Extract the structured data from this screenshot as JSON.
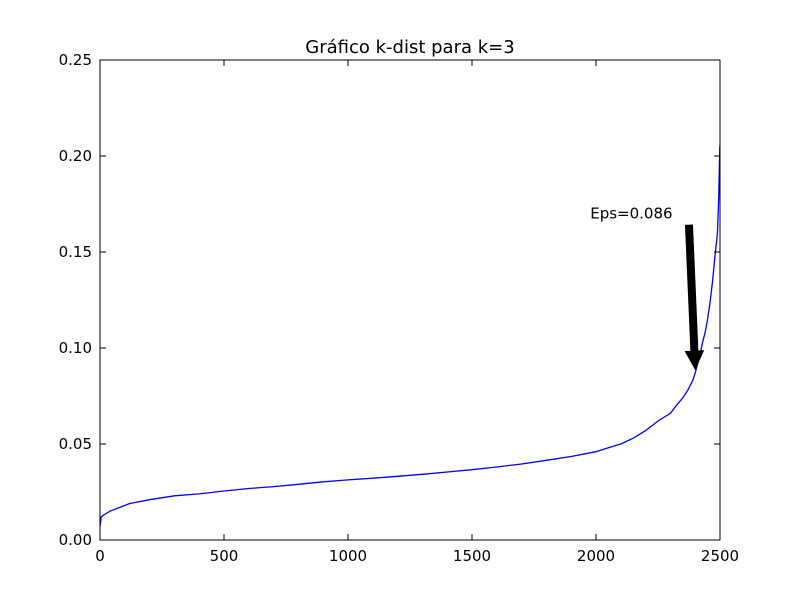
{
  "chart_data": {
    "type": "line",
    "title": "Gráfico k-dist para k=3",
    "xlabel": "",
    "ylabel": "",
    "xlim": [
      0,
      2500
    ],
    "ylim": [
      0,
      0.25
    ],
    "x_ticks": [
      0,
      500,
      1000,
      1500,
      2000,
      2500
    ],
    "x_tick_labels": [
      "0",
      "500",
      "1000",
      "1500",
      "2000",
      "2500"
    ],
    "y_ticks": [
      0,
      0.05,
      0.1,
      0.15,
      0.2,
      0.25
    ],
    "y_tick_labels": [
      "0.00",
      "0.05",
      "0.10",
      "0.15",
      "0.20",
      "0.25"
    ],
    "grid": false,
    "legend": "none",
    "series": [
      {
        "color": "#0000ff",
        "x": [
          0,
          5,
          15,
          40,
          80,
          120,
          200,
          300,
          400,
          500,
          600,
          700,
          800,
          900,
          1000,
          1100,
          1200,
          1300,
          1400,
          1500,
          1600,
          1700,
          1800,
          1900,
          2000,
          2050,
          2100,
          2150,
          2200,
          2250,
          2300,
          2330,
          2350,
          2370,
          2390,
          2400,
          2410,
          2420,
          2430,
          2440,
          2450,
          2460,
          2470,
          2480,
          2490,
          2495,
          2499
        ],
        "y": [
          0.007,
          0.012,
          0.013,
          0.015,
          0.017,
          0.019,
          0.021,
          0.023,
          0.024,
          0.0255,
          0.0268,
          0.0278,
          0.029,
          0.0303,
          0.0313,
          0.0322,
          0.0332,
          0.0342,
          0.0354,
          0.0366,
          0.038,
          0.0396,
          0.0415,
          0.0435,
          0.046,
          0.048,
          0.05,
          0.053,
          0.057,
          0.062,
          0.066,
          0.071,
          0.074,
          0.078,
          0.083,
          0.087,
          0.092,
          0.097,
          0.103,
          0.108,
          0.115,
          0.124,
          0.135,
          0.148,
          0.16,
          0.18,
          0.205
        ]
      }
    ],
    "annotations": [
      {
        "text": "Eps=0.086",
        "text_x": 2005,
        "text_y": 0.17,
        "arrow_from_x": 2375,
        "arrow_from_y": 0.164,
        "arrow_to_x": 2400,
        "arrow_to_y": 0.089
      }
    ]
  }
}
